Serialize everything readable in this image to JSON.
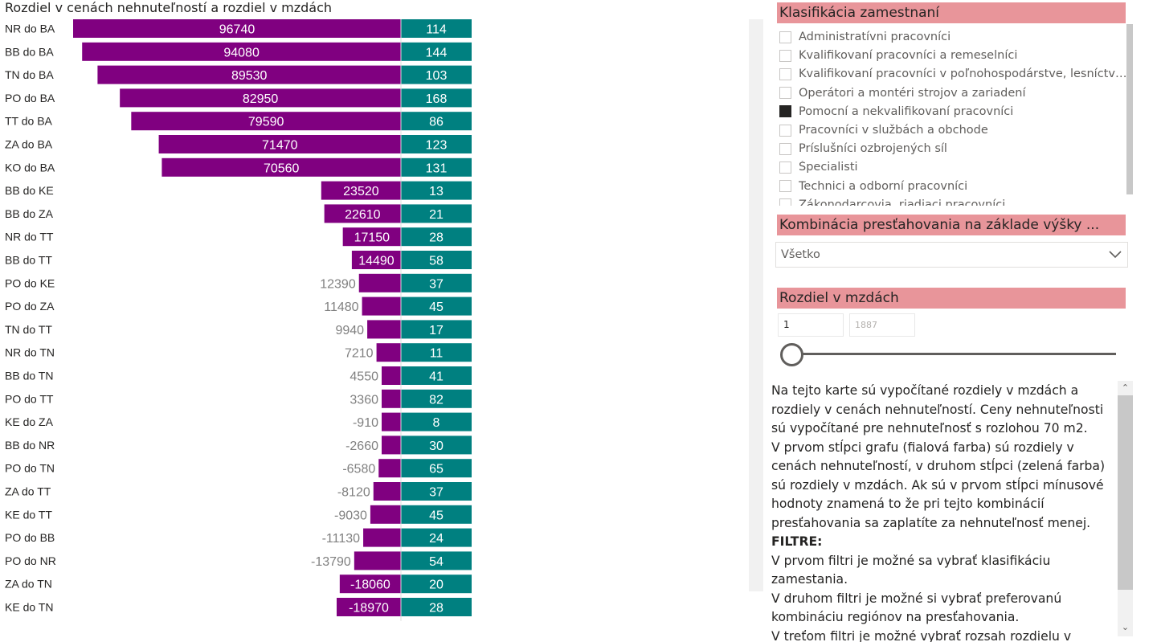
{
  "chart_data": {
    "type": "bar",
    "title": "Rozdiel v cenách nehnuteľností a rozdiel v mzdách",
    "categories": [
      "NR do BA",
      "BB do BA",
      "TN do BA",
      "PO do BA",
      "TT do BA",
      "ZA do BA",
      "KO do BA",
      "BB do KE",
      "BB do ZA",
      "NR do TT",
      "BB do TT",
      "PO do KE",
      "PO do ZA",
      "TN do TT",
      "NR do TN",
      "BB do TN",
      "PO do TT",
      "KE do ZA",
      "BB do NR",
      "PO do TN",
      "ZA do TT",
      "KE do TT",
      "PO do BB",
      "PO do NR",
      "ZA do TN",
      "KE do TN"
    ],
    "series": [
      {
        "values": [
          96740,
          94080,
          89530,
          82950,
          79590,
          71470,
          70560,
          23520,
          22610,
          17150,
          14490,
          12390,
          11480,
          9940,
          7210,
          4550,
          3360,
          -910,
          -2660,
          -6580,
          -8120,
          -9030,
          -11130,
          -13790,
          -18060,
          -18970
        ],
        "color": "#800080"
      },
      {
        "values": [
          114,
          144,
          103,
          168,
          86,
          123,
          131,
          13,
          21,
          28,
          58,
          37,
          45,
          17,
          11,
          41,
          82,
          8,
          30,
          65,
          37,
          45,
          24,
          54,
          20,
          28
        ],
        "color": "#008080"
      }
    ],
    "legend": "none",
    "grid": false
  },
  "filters": {
    "classification": {
      "header": "Klasifikácia zamestnaní",
      "items": [
        {
          "label": "Administratívni pracovníci",
          "checked": false
        },
        {
          "label": "Kvalifikovaní pracovníci a remeselníci",
          "checked": false
        },
        {
          "label": "Kvalifikovaní pracovníci v poľnohospodárstve, lesníctve a...",
          "checked": false
        },
        {
          "label": "Operátori a montéri strojov a zariadení",
          "checked": false
        },
        {
          "label": "Pomocní a nekvalifikovaní pracovníci",
          "checked": true
        },
        {
          "label": "Pracovníci v službách a obchode",
          "checked": false
        },
        {
          "label": "Príslušníci ozbrojených síl",
          "checked": false
        },
        {
          "label": "Špecialisti",
          "checked": false
        },
        {
          "label": "Technici a odborní pracovníci",
          "checked": false
        },
        {
          "label": "Zákonodarcovia, riadiaci pracovníci",
          "checked": false
        }
      ]
    },
    "commute": {
      "header": "Kombinácia presťahovania na základe výšky ...",
      "selected": "Všetko"
    },
    "wage_diff": {
      "header": "Rozdiel v mzdách",
      "min": "1",
      "max": "1887",
      "slider_value": 1
    }
  },
  "info": {
    "paragraphs": [
      "Na tejto karte sú vypočítané rozdiely v mzdách a rozdiely v cenách nehnuteľností. Ceny nehnuteľnosti sú vypočítané pre nehnuteľnosť s rozlohou 70 m2.",
      "V prvom stĺpci grafu (fialová farba) sú rozdiely v cenách nehnuteľností, v druhom stĺpci (zelená farba) sú rozdiely v mzdách. Ak sú v prvom stĺpci mínusové hodnoty znamená to že pri tejto kombinácií presťahovania sa zaplatíte za nehnuteľnosť menej."
    ],
    "filters_heading": "FILTRE:",
    "filter_paragraphs": [
      "V prvom filtri je možné sa vybrať klasifikáciu zamestania.",
      "V druhom filtri je možné si vybrať preferovanú kombináciu regiónov na presťahovania.",
      "V treťom filtri je možné vybrať rozsah rozdielu v mzdách."
    ]
  },
  "colors": {
    "header_bg": "#e8959a",
    "bar_price": "#800080",
    "bar_wage": "#008080"
  },
  "icons": {
    "combo": "chevron-down-icon",
    "scroll_up": "chevron-up-icon",
    "scroll_down": "chevron-down-icon"
  }
}
